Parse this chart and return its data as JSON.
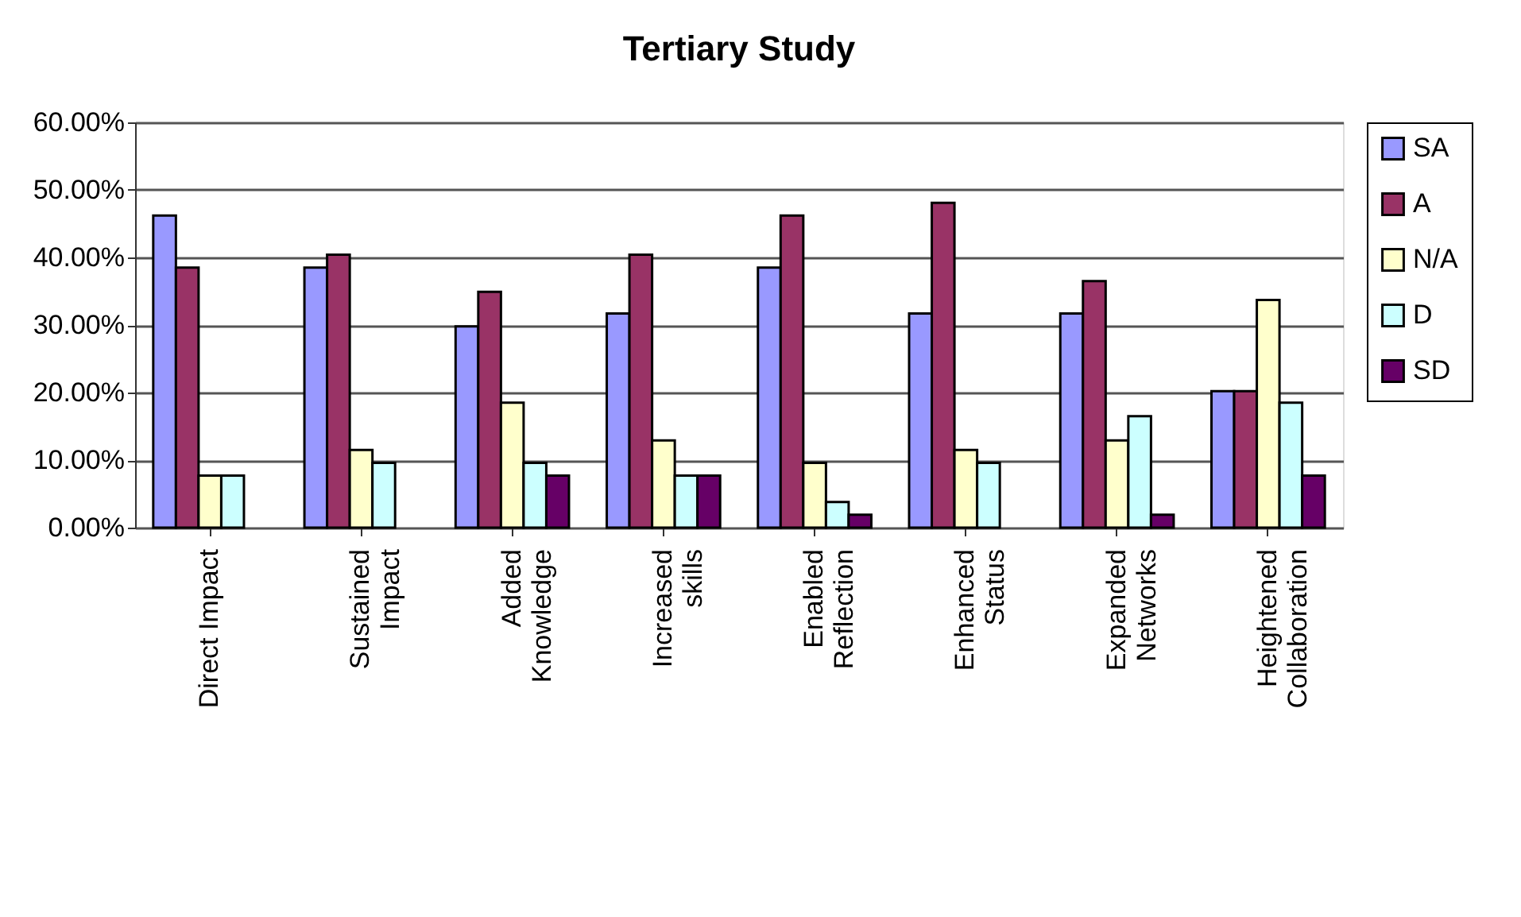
{
  "chart_data": {
    "type": "bar",
    "title": "Tertiary Study",
    "categories": [
      "Direct Impact",
      "Sustained Impact",
      "Added Knowledge",
      "Increased skills",
      "Enabled Reflection",
      "Enhanced Status",
      "Expanded Networks",
      "Heightened Collaboration"
    ],
    "series": [
      {
        "name": "SA",
        "color": "#9999ff",
        "values": [
          46.2,
          38.5,
          29.8,
          31.7,
          38.5,
          31.7,
          31.7,
          20.2
        ]
      },
      {
        "name": "A",
        "color": "#993366",
        "values": [
          38.5,
          40.4,
          34.9,
          40.4,
          46.2,
          48.1,
          36.5,
          20.2
        ]
      },
      {
        "name": "N/A",
        "color": "#ffffcc",
        "values": [
          7.7,
          11.5,
          18.5,
          12.9,
          9.6,
          11.5,
          12.9,
          33.7
        ]
      },
      {
        "name": "D",
        "color": "#ccffff",
        "values": [
          7.7,
          9.6,
          9.6,
          7.7,
          3.8,
          9.6,
          16.5,
          18.5
        ]
      },
      {
        "name": "SD",
        "color": "#660066",
        "values": [
          null,
          null,
          7.7,
          7.7,
          1.9,
          null,
          1.9,
          7.7
        ]
      }
    ],
    "ylim": [
      0,
      60
    ],
    "yticks": [
      {
        "value": 0,
        "label": "0.00%"
      },
      {
        "value": 10,
        "label": "10.00%"
      },
      {
        "value": 20,
        "label": "20.00%"
      },
      {
        "value": 30,
        "label": "30.00%"
      },
      {
        "value": 40,
        "label": "40.00%"
      },
      {
        "value": 50,
        "label": "50.00%"
      },
      {
        "value": 60,
        "label": "60.00%"
      }
    ],
    "grid": "y",
    "legend": "right"
  }
}
